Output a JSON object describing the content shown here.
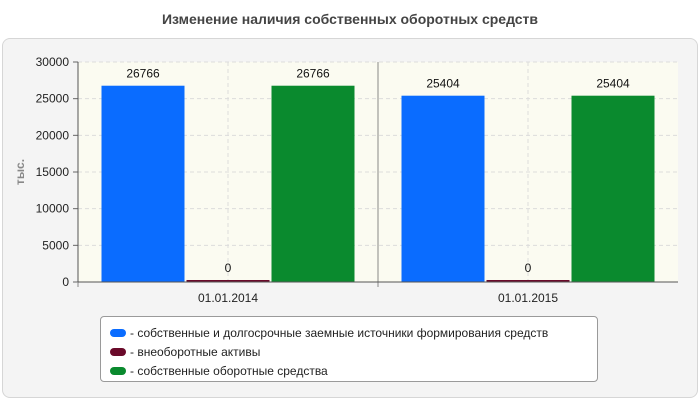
{
  "title": "Изменение наличия собственных оборотных средств",
  "colors": {
    "series1": "#0a6cff",
    "series2": "#6a0a2a",
    "series3": "#0a8a2e"
  },
  "chart_data": {
    "type": "bar",
    "title": "Изменение наличия собственных оборотных средств",
    "xlabel": "",
    "ylabel": "тыс.",
    "ylim": [
      0,
      30000
    ],
    "yticks": [
      "0",
      "5000",
      "10000",
      "15000",
      "20000",
      "25000",
      "30000"
    ],
    "categories": [
      "01.01.2014",
      "01.01.2015"
    ],
    "grid": true,
    "legend_position": "bottom",
    "series": [
      {
        "name": "- собственные и долгосрочные заемные источники формирования средств",
        "values": [
          26766,
          25404
        ],
        "labels": [
          "26766",
          "25404"
        ],
        "color": "#0a6cff"
      },
      {
        "name": "- внеоборотные активы",
        "values": [
          0,
          0
        ],
        "labels": [
          "0",
          "0"
        ],
        "color": "#6a0a2a"
      },
      {
        "name": "- собственные оборотные средства",
        "values": [
          26766,
          25404
        ],
        "labels": [
          "26766",
          "25404"
        ],
        "color": "#0a8a2e"
      }
    ]
  }
}
